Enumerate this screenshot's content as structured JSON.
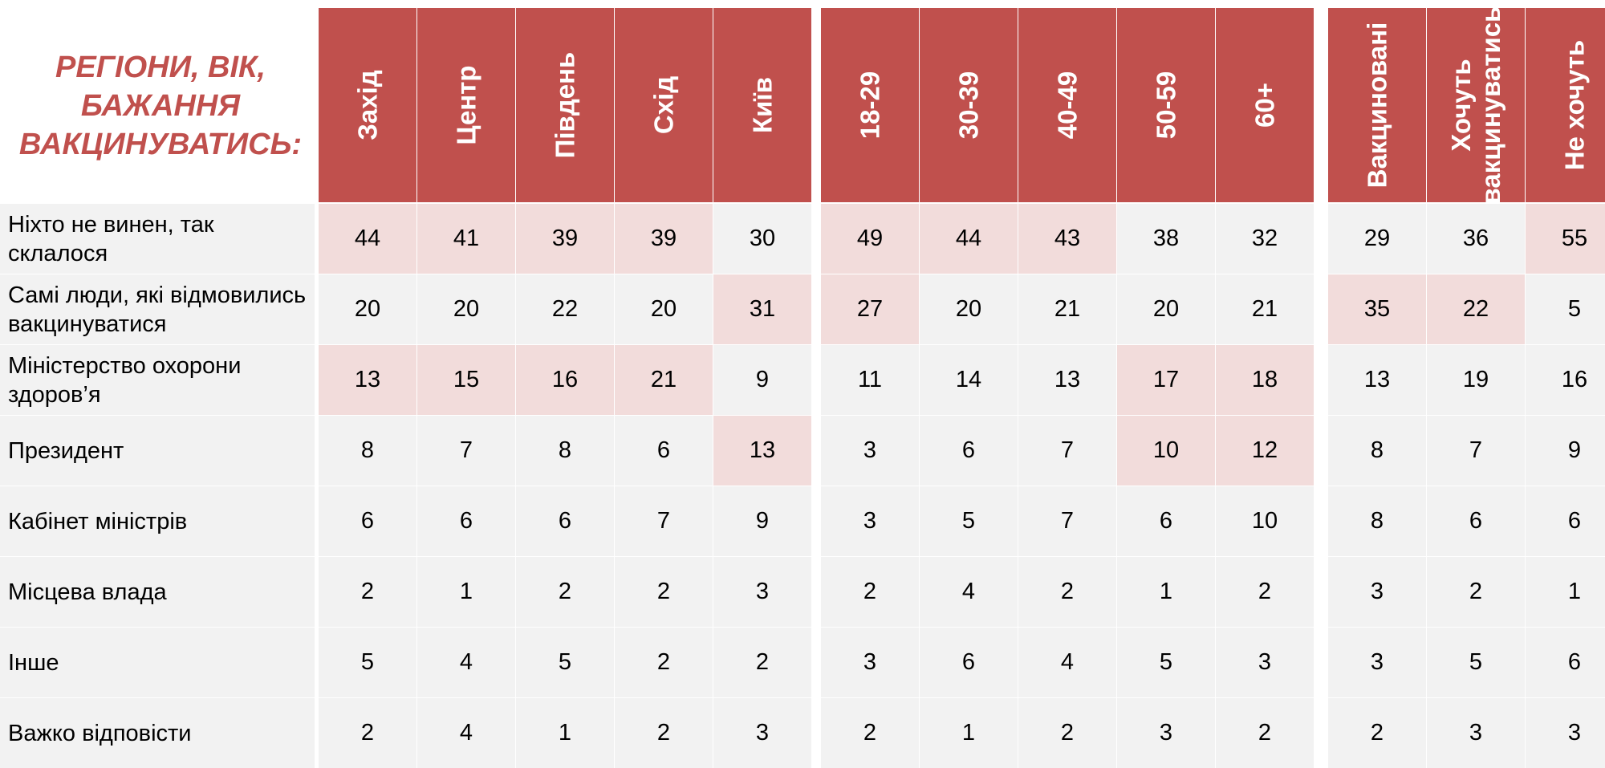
{
  "chart_data": {
    "type": "table",
    "title_lines": [
      "РЕГІОНИ, ВІК,",
      "БАЖАННЯ",
      "ВАКЦИНУВАТИСЬ:"
    ],
    "column_groups": [
      [
        "Захід",
        "Центр",
        "Південь",
        "Схід",
        "Київ"
      ],
      [
        "18-29",
        "30-39",
        "40-49",
        "50-59",
        "60+"
      ],
      [
        "Вакциновані",
        "Хочуть вакцинуватись",
        "Не хочуть"
      ]
    ],
    "columns": [
      {
        "lines": [
          "Захід"
        ]
      },
      {
        "lines": [
          "Центр"
        ]
      },
      {
        "lines": [
          "Південь"
        ]
      },
      {
        "lines": [
          "Схід"
        ]
      },
      {
        "lines": [
          "Київ"
        ]
      },
      {
        "lines": [
          "18-29"
        ]
      },
      {
        "lines": [
          "30-39"
        ]
      },
      {
        "lines": [
          "40-49"
        ]
      },
      {
        "lines": [
          "50-59"
        ]
      },
      {
        "lines": [
          "60+"
        ]
      },
      {
        "lines": [
          "Вакциновані"
        ]
      },
      {
        "lines": [
          "Хочуть",
          "вакцинуватись"
        ]
      },
      {
        "lines": [
          "Не хочуть"
        ]
      }
    ],
    "rows": [
      {
        "label": "Ніхто не винен, так склалося",
        "values": [
          44,
          41,
          39,
          39,
          30,
          49,
          44,
          43,
          38,
          32,
          29,
          36,
          55
        ],
        "highlight": [
          true,
          true,
          true,
          true,
          false,
          true,
          true,
          true,
          false,
          false,
          false,
          false,
          true
        ]
      },
      {
        "label": "Самі люди, які відмовились вакцинуватися",
        "values": [
          20,
          20,
          22,
          20,
          31,
          27,
          20,
          21,
          20,
          21,
          35,
          22,
          5
        ],
        "highlight": [
          false,
          false,
          false,
          false,
          true,
          true,
          false,
          false,
          false,
          false,
          true,
          true,
          false
        ]
      },
      {
        "label": "Міністерство охорони здоров’я",
        "values": [
          13,
          15,
          16,
          21,
          9,
          11,
          14,
          13,
          17,
          18,
          13,
          19,
          16
        ],
        "highlight": [
          true,
          true,
          true,
          true,
          false,
          false,
          false,
          false,
          true,
          true,
          false,
          false,
          false
        ]
      },
      {
        "label": "Президент",
        "values": [
          8,
          7,
          8,
          6,
          13,
          3,
          6,
          7,
          10,
          12,
          8,
          7,
          9
        ],
        "highlight": [
          false,
          false,
          false,
          false,
          true,
          false,
          false,
          false,
          true,
          true,
          false,
          false,
          false
        ]
      },
      {
        "label": "Кабінет міністрів",
        "values": [
          6,
          6,
          6,
          7,
          9,
          3,
          5,
          7,
          6,
          10,
          8,
          6,
          6
        ],
        "highlight": [
          false,
          false,
          false,
          false,
          false,
          false,
          false,
          false,
          false,
          false,
          false,
          false,
          false
        ]
      },
      {
        "label": "Місцева влада",
        "values": [
          2,
          1,
          2,
          2,
          3,
          2,
          4,
          2,
          1,
          2,
          3,
          2,
          1
        ],
        "highlight": [
          false,
          false,
          false,
          false,
          false,
          false,
          false,
          false,
          false,
          false,
          false,
          false,
          false
        ]
      },
      {
        "label": "Інше",
        "values": [
          5,
          4,
          5,
          2,
          2,
          3,
          6,
          4,
          5,
          3,
          3,
          5,
          6
        ],
        "highlight": [
          false,
          false,
          false,
          false,
          false,
          false,
          false,
          false,
          false,
          false,
          false,
          false,
          false
        ]
      },
      {
        "label": "Важко відповісти",
        "values": [
          2,
          4,
          1,
          2,
          3,
          2,
          1,
          2,
          3,
          2,
          2,
          3,
          3
        ],
        "highlight": [
          false,
          false,
          false,
          false,
          false,
          false,
          false,
          false,
          false,
          false,
          false,
          false,
          false
        ]
      }
    ],
    "colors": {
      "header": "#c0504d",
      "title": "#c0504d",
      "cell": "#f2f2f2",
      "highlight": "#f2dcdb"
    }
  }
}
